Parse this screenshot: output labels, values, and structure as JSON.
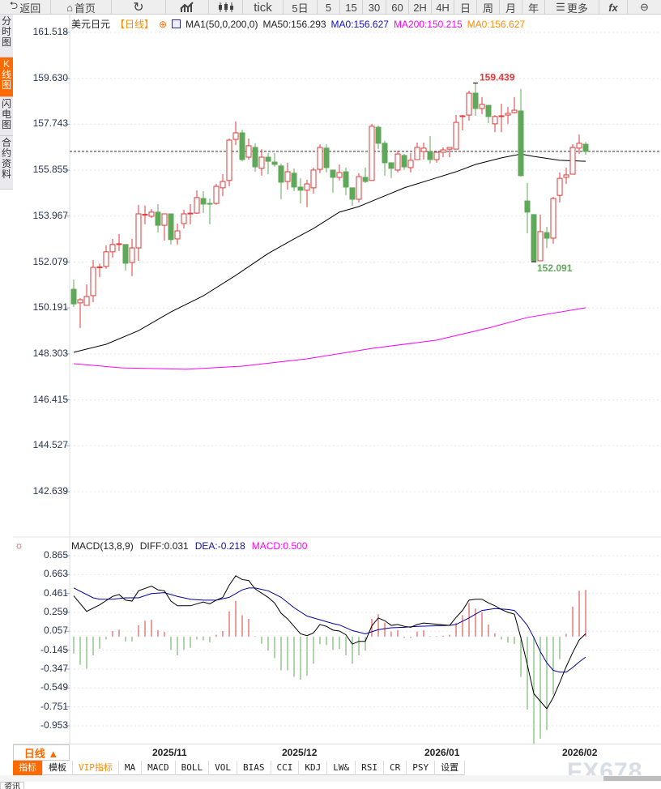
{
  "toolbar": {
    "items": [
      "返回",
      "首页",
      "",
      "",
      "",
      "tick",
      "5日",
      "5",
      "15",
      "30",
      "60",
      "2H",
      "4H",
      "日",
      "周",
      "月",
      "年",
      "更多",
      "fx",
      ""
    ],
    "icons": [
      "back-arrow-icon",
      "home-icon",
      "refresh-icon",
      "bar-chart-icon",
      "candlestick-icon",
      "menu-icon",
      "zoom-out-icon"
    ]
  },
  "sidebar": {
    "tabs": [
      "分时图",
      "K线图",
      "闪电图",
      "合约资料"
    ],
    "active": 1
  },
  "legend": {
    "symbol": "美元日元",
    "period": "【日线】",
    "ma_label": "MA1(50,0,200,0)",
    "ma50": "MA50:156.293",
    "ma0a": "MA0:156.627",
    "ma200": "MA200:150.215",
    "ma0b": "MA0:156.627"
  },
  "macd_legend": {
    "name": "MACD(13,8,9)",
    "diff": "DIFF:0.031",
    "dea": "DEA:-0.218",
    "macd": "MACD:0.500"
  },
  "colors": {
    "up": "#e03a3a",
    "down": "#5fa85a",
    "ma50": "#000000",
    "ma200": "#ff00ff",
    "last": "#1a73e8",
    "diff": "#000000",
    "dea": "#0000a0"
  },
  "price_axis": [
    "161.518",
    "159.630",
    "157.743",
    "155.855",
    "153.967",
    "152.079",
    "150.191",
    "148.303",
    "146.415",
    "144.527",
    "142.639"
  ],
  "macd_axis": [
    "0.865",
    "0.663",
    "0.461",
    "0.259",
    "0.057",
    "-0.145",
    "-0.347",
    "-0.549",
    "-0.751",
    "-0.953"
  ],
  "annotations": {
    "high": "159.439",
    "low": "152.091"
  },
  "datebar": {
    "range": "日线 ▲",
    "dates": [
      "2025/11",
      "2025/12",
      "2026/01",
      "2026/02"
    ]
  },
  "indicator_tabs": [
    "指标",
    "模板",
    "VIP指标",
    "MA",
    "MACD",
    "BOLL",
    "VOL",
    "BIAS",
    "CCI",
    "KDJ",
    "LW&",
    "RSI",
    "CR",
    "PSY",
    "设置"
  ],
  "bottom_tab": "资讯",
  "watermark": "FX678",
  "chart_data": {
    "type": "candlestick",
    "title": "美元日元 日线",
    "ylim": [
      142.639,
      161.518
    ],
    "last_price": 156.627,
    "high": 159.439,
    "low": 152.091,
    "candles_ohlc": [
      [
        150.96,
        151.36,
        150.23,
        150.36
      ],
      [
        150.4,
        150.6,
        149.37,
        150.53
      ],
      [
        150.3,
        151.16,
        150.3,
        150.66
      ],
      [
        150.7,
        152.16,
        150.43,
        151.86
      ],
      [
        151.86,
        152.01,
        151.46,
        151.88
      ],
      [
        151.9,
        152.76,
        151.8,
        152.5
      ],
      [
        152.5,
        153.03,
        152.26,
        152.8
      ],
      [
        152.8,
        153.23,
        152.53,
        152.83
      ],
      [
        152.8,
        152.8,
        151.73,
        152.03
      ],
      [
        152.06,
        153.03,
        151.5,
        152.66
      ],
      [
        152.66,
        154.43,
        152.13,
        154.06
      ],
      [
        154.03,
        154.4,
        153.63,
        154.04
      ],
      [
        153.96,
        154.26,
        153.89,
        154.13
      ],
      [
        154.13,
        154.46,
        153.29,
        153.59
      ],
      [
        153.59,
        154.06,
        152.96,
        154.06
      ],
      [
        154.06,
        154.06,
        152.8,
        153.0
      ],
      [
        153.03,
        153.66,
        152.8,
        153.36
      ],
      [
        153.66,
        154.23,
        153.46,
        154.06
      ],
      [
        154.08,
        154.46,
        153.63,
        154.09
      ],
      [
        154.09,
        155.03,
        154.06,
        154.73
      ],
      [
        154.69,
        154.99,
        154.09,
        154.46
      ],
      [
        154.49,
        154.69,
        153.63,
        154.46
      ],
      [
        154.49,
        155.29,
        154.43,
        155.19
      ],
      [
        155.13,
        155.69,
        154.79,
        155.39
      ],
      [
        155.43,
        157.16,
        155.19,
        157.09
      ],
      [
        157.12,
        157.86,
        156.89,
        157.39
      ],
      [
        157.39,
        157.52,
        156.22,
        156.29
      ],
      [
        156.39,
        157.16,
        156.29,
        156.86
      ],
      [
        156.79,
        156.96,
        155.79,
        155.99
      ],
      [
        155.93,
        156.72,
        155.63,
        156.39
      ],
      [
        156.39,
        156.56,
        155.69,
        156.22
      ],
      [
        156.19,
        156.56,
        155.99,
        156.09
      ],
      [
        156.03,
        156.13,
        154.66,
        155.36
      ],
      [
        155.39,
        156.16,
        155.06,
        155.79
      ],
      [
        155.73,
        155.93,
        154.99,
        155.16
      ],
      [
        155.16,
        155.53,
        154.49,
        155.03
      ],
      [
        155.03,
        155.46,
        154.33,
        155.29
      ],
      [
        155.13,
        155.96,
        154.89,
        155.86
      ],
      [
        155.89,
        156.92,
        155.73,
        156.79
      ],
      [
        156.76,
        156.92,
        155.76,
        155.96
      ],
      [
        155.86,
        155.86,
        154.93,
        155.56
      ],
      [
        155.56,
        156.09,
        155.43,
        155.76
      ],
      [
        155.79,
        155.96,
        154.83,
        155.16
      ],
      [
        155.13,
        155.13,
        154.39,
        154.66
      ],
      [
        154.66,
        155.73,
        154.53,
        155.59
      ],
      [
        155.56,
        155.96,
        155.33,
        155.39
      ],
      [
        155.43,
        157.76,
        155.43,
        157.66
      ],
      [
        157.62,
        157.69,
        156.72,
        156.96
      ],
      [
        156.96,
        157.06,
        155.63,
        156.16
      ],
      [
        156.16,
        156.16,
        155.53,
        155.93
      ],
      [
        155.86,
        156.66,
        155.76,
        156.52
      ],
      [
        156.46,
        156.52,
        155.86,
        155.99
      ],
      [
        155.96,
        156.56,
        155.76,
        156.26
      ],
      [
        156.29,
        156.99,
        156.29,
        156.79
      ],
      [
        156.62,
        156.99,
        156.29,
        156.76
      ],
      [
        156.62,
        157.26,
        156.13,
        156.29
      ],
      [
        156.29,
        156.62,
        156.16,
        156.59
      ],
      [
        156.59,
        156.79,
        156.39,
        156.69
      ],
      [
        156.72,
        156.79,
        156.39,
        156.79
      ],
      [
        156.72,
        158.12,
        156.72,
        157.82
      ],
      [
        158.06,
        158.12,
        157.49,
        158.09
      ],
      [
        158.12,
        159.12,
        157.89,
        159.02
      ],
      [
        159.02,
        159.439,
        158.09,
        158.39
      ],
      [
        158.39,
        158.86,
        158.16,
        158.56
      ],
      [
        158.52,
        158.52,
        157.79,
        158.06
      ],
      [
        157.76,
        158.12,
        157.42,
        158.06
      ],
      [
        158.06,
        158.59,
        157.42,
        158.09
      ],
      [
        158.12,
        158.46,
        157.76,
        158.19
      ],
      [
        158.22,
        158.86,
        158.19,
        158.32
      ],
      [
        158.29,
        159.19,
        155.59,
        155.63
      ],
      [
        154.59,
        155.33,
        153.26,
        154.13
      ],
      [
        154.03,
        154.03,
        152.091,
        152.13
      ],
      [
        152.13,
        154.03,
        152.13,
        153.33
      ],
      [
        153.29,
        153.53,
        152.66,
        153.06
      ],
      [
        153.06,
        154.76,
        152.83,
        154.69
      ],
      [
        154.82,
        155.76,
        154.53,
        155.52
      ],
      [
        155.56,
        155.96,
        155.29,
        155.66
      ],
      [
        155.69,
        156.92,
        155.69,
        156.79
      ],
      [
        156.76,
        157.32,
        156.52,
        156.96
      ],
      [
        156.92,
        157.02,
        156.49,
        156.627
      ]
    ],
    "ma50": [
      [
        0,
        148.37
      ],
      [
        5,
        148.7
      ],
      [
        10,
        149.26
      ],
      [
        15,
        150.03
      ],
      [
        20,
        150.69
      ],
      [
        25,
        151.53
      ],
      [
        30,
        152.43
      ],
      [
        34,
        153.03
      ],
      [
        37,
        153.46
      ],
      [
        41,
        154.13
      ],
      [
        44,
        154.36
      ],
      [
        47,
        154.69
      ],
      [
        51,
        155.13
      ],
      [
        55,
        155.46
      ],
      [
        59,
        155.79
      ],
      [
        62,
        156.09
      ],
      [
        66,
        156.36
      ],
      [
        69,
        156.52
      ],
      [
        71,
        156.42
      ],
      [
        75,
        156.26
      ],
      [
        79,
        156.22
      ]
    ],
    "ma200": [
      [
        0,
        147.9
      ],
      [
        7.4,
        147.73
      ],
      [
        17.4,
        147.67
      ],
      [
        26,
        147.8
      ],
      [
        36,
        148.1
      ],
      [
        46,
        148.53
      ],
      [
        56,
        148.87
      ],
      [
        64,
        149.37
      ],
      [
        70,
        149.8
      ],
      [
        79,
        150.2
      ]
    ],
    "macd": {
      "ylim": [
        -0.953,
        0.865
      ],
      "hist": [
        -0.18,
        -0.3,
        -0.34,
        -0.2,
        -0.13,
        -0.03,
        0.06,
        0.075,
        -0.05,
        -0.05,
        0.12,
        0.17,
        0.18,
        0.07,
        0.05,
        -0.14,
        -0.2,
        -0.14,
        -0.12,
        -0.03,
        -0.04,
        -0.06,
        0.02,
        0.06,
        0.27,
        0.38,
        0.23,
        0.19,
        0.005,
        -0.075,
        -0.15,
        -0.23,
        -0.36,
        -0.36,
        -0.43,
        -0.46,
        -0.42,
        -0.29,
        -0.08,
        -0.09,
        -0.14,
        -0.135,
        -0.2,
        -0.29,
        -0.2,
        -0.15,
        0.19,
        0.24,
        0.15,
        0.055,
        0.07,
        -0.015,
        -0.015,
        0.055,
        0.07,
        0.005,
        0.005,
        0.01,
        0.02,
        0.145,
        0.23,
        0.36,
        0.3,
        0.26,
        0.13,
        0.035,
        -0.03,
        -0.065,
        -0.08,
        -0.43,
        -0.78,
        -1.15,
        -1.09,
        -1.0,
        -0.62,
        -0.24,
        0.03,
        0.32,
        0.49,
        0.5
      ],
      "diff": [
        [
          0,
          0.436
        ],
        [
          2,
          0.27
        ],
        [
          4,
          0.34
        ],
        [
          6,
          0.43
        ],
        [
          7,
          0.45
        ],
        [
          8,
          0.39
        ],
        [
          9,
          0.38
        ],
        [
          10,
          0.49
        ],
        [
          12,
          0.54
        ],
        [
          13,
          0.5
        ],
        [
          14,
          0.49
        ],
        [
          15,
          0.38
        ],
        [
          16,
          0.33
        ],
        [
          18,
          0.33
        ],
        [
          20,
          0.37
        ],
        [
          21,
          0.35
        ],
        [
          22,
          0.39
        ],
        [
          23,
          0.42
        ],
        [
          24,
          0.55
        ],
        [
          25,
          0.65
        ],
        [
          26,
          0.61
        ],
        [
          27,
          0.6
        ],
        [
          28,
          0.51
        ],
        [
          30,
          0.42
        ],
        [
          31,
          0.36
        ],
        [
          32,
          0.25
        ],
        [
          33,
          0.19
        ],
        [
          34,
          0.11
        ],
        [
          35,
          0.03
        ],
        [
          36,
          0.01
        ],
        [
          37,
          0.04
        ],
        [
          38,
          0.13
        ],
        [
          39,
          0.11
        ],
        [
          40,
          0.07
        ],
        [
          41,
          0.06
        ],
        [
          42,
          0.02
        ],
        [
          43,
          -0.08
        ],
        [
          44,
          -0.05
        ],
        [
          45,
          -0.05
        ],
        [
          46,
          0.115
        ],
        [
          47,
          0.2
        ],
        [
          48,
          0.17
        ],
        [
          49,
          0.12
        ],
        [
          50,
          0.13
        ],
        [
          51,
          0.11
        ],
        [
          52,
          0.1
        ],
        [
          53,
          0.13
        ],
        [
          54,
          0.145
        ],
        [
          58,
          0.12
        ],
        [
          59,
          0.205
        ],
        [
          60,
          0.28
        ],
        [
          61,
          0.39
        ],
        [
          62,
          0.4
        ],
        [
          63,
          0.4
        ],
        [
          64,
          0.36
        ],
        [
          65,
          0.33
        ],
        [
          66,
          0.29
        ],
        [
          67,
          0.26
        ],
        [
          68,
          0.24
        ],
        [
          69,
          -0.01
        ],
        [
          70,
          -0.3
        ],
        [
          71,
          -0.61
        ],
        [
          72,
          -0.69
        ],
        [
          73,
          -0.77
        ],
        [
          74,
          -0.65
        ],
        [
          75,
          -0.49
        ],
        [
          76,
          -0.32
        ],
        [
          77,
          -0.17
        ],
        [
          78,
          -0.035
        ],
        [
          79,
          0.031
        ]
      ],
      "dea": [
        [
          0,
          0.52
        ],
        [
          3,
          0.415
        ],
        [
          4,
          0.4
        ],
        [
          6,
          0.4
        ],
        [
          8,
          0.415
        ],
        [
          10,
          0.415
        ],
        [
          12,
          0.46
        ],
        [
          14,
          0.47
        ],
        [
          16,
          0.43
        ],
        [
          18,
          0.4
        ],
        [
          20,
          0.39
        ],
        [
          22,
          0.39
        ],
        [
          24,
          0.42
        ],
        [
          26,
          0.5
        ],
        [
          27,
          0.52
        ],
        [
          28,
          0.52
        ],
        [
          30,
          0.49
        ],
        [
          32,
          0.42
        ],
        [
          34,
          0.31
        ],
        [
          36,
          0.22
        ],
        [
          38,
          0.18
        ],
        [
          40,
          0.14
        ],
        [
          41,
          0.125
        ],
        [
          43,
          0.065
        ],
        [
          45,
          0.03
        ],
        [
          47,
          0.075
        ],
        [
          49,
          0.095
        ],
        [
          51,
          0.1
        ],
        [
          53,
          0.11
        ],
        [
          58,
          0.12
        ],
        [
          59,
          0.13
        ],
        [
          61,
          0.2
        ],
        [
          63,
          0.28
        ],
        [
          65,
          0.3
        ],
        [
          67,
          0.29
        ],
        [
          68,
          0.28
        ],
        [
          69,
          0.205
        ],
        [
          70,
          0.12
        ],
        [
          71,
          -0.01
        ],
        [
          72,
          -0.16
        ],
        [
          73,
          -0.28
        ],
        [
          74,
          -0.36
        ],
        [
          75,
          -0.38
        ],
        [
          76,
          -0.38
        ],
        [
          77,
          -0.33
        ],
        [
          78,
          -0.27
        ],
        [
          79,
          -0.218
        ]
      ]
    }
  }
}
